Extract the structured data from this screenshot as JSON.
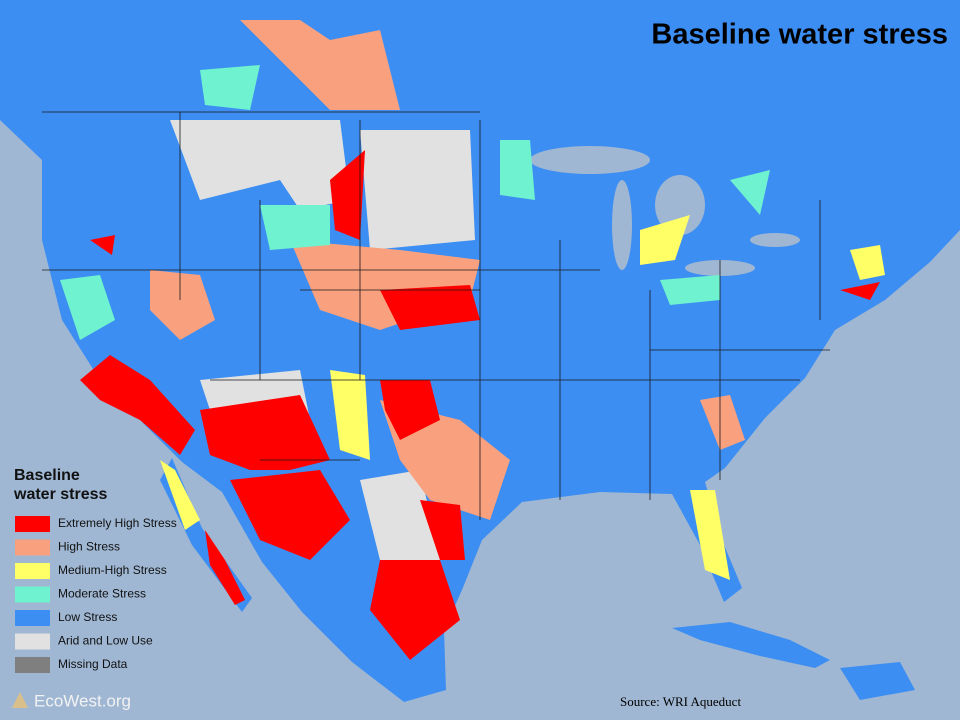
{
  "title": "Baseline water stress",
  "legend": {
    "title_lines": [
      "Baseline",
      "water stress"
    ],
    "items": [
      {
        "label": "Extremely High Stress",
        "color": "#ff0000"
      },
      {
        "label": "High Stress",
        "color": "#f9a17f"
      },
      {
        "label": "Medium-High Stress",
        "color": "#ffff66"
      },
      {
        "label": "Moderate Stress",
        "color": "#6ff2cf"
      },
      {
        "label": "Low Stress",
        "color": "#3d8ef2"
      },
      {
        "label": "Arid and Low Use",
        "color": "#e1e1e1"
      },
      {
        "label": "Missing Data",
        "color": "#7f7f7f"
      }
    ]
  },
  "source": "Source: WRI Aqueduct",
  "logo": "EcoWest.org"
}
